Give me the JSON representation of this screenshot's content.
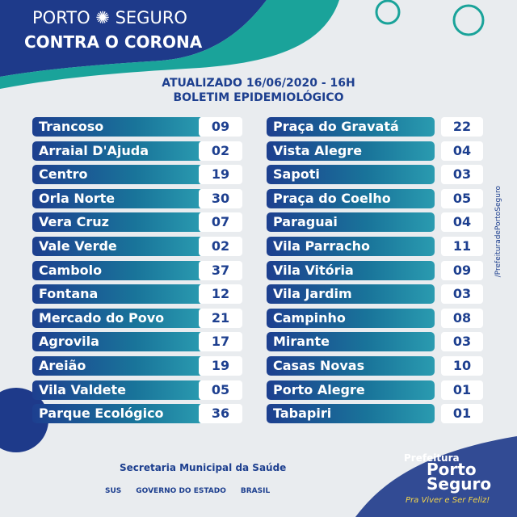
{
  "header": {
    "brand_left": "PORTO",
    "brand_right": "SEGURO",
    "title": "CONTRA O CORONA"
  },
  "bulletin": {
    "updated": "ATUALIZADO 16/06/2020 - 16H",
    "title": "BOLETIM EPIDEMIOLÓGICO"
  },
  "columns": [
    {
      "rows": [
        [
          "Trancoso",
          "09"
        ],
        [
          "Arraial D'Ajuda",
          "02"
        ],
        [
          "Centro",
          "19"
        ],
        [
          "Orla Norte",
          "30"
        ],
        [
          "Vera Cruz",
          "07"
        ],
        [
          "Vale Verde",
          "02"
        ],
        [
          "Cambolo",
          "37"
        ],
        [
          "Fontana",
          "12"
        ],
        [
          "Mercado do Povo",
          "21"
        ],
        [
          "Agrovila",
          "17"
        ],
        [
          "Areião",
          "19"
        ],
        [
          "Vila Valdete",
          "05"
        ],
        [
          "Parque Ecológico",
          "36"
        ]
      ]
    },
    {
      "rows": [
        [
          "Praça do Gravatá",
          "22"
        ],
        [
          "Vista Alegre",
          "04"
        ],
        [
          "Sapoti",
          "03"
        ],
        [
          "Praça do Coelho",
          "05"
        ],
        [
          "Paraguai",
          "04"
        ],
        [
          "Vila Parracho",
          "11"
        ],
        [
          "Vila Vitória",
          "09"
        ],
        [
          "Vila Jardim",
          "03"
        ],
        [
          "Campinho",
          "08"
        ],
        [
          "Mirante",
          "03"
        ],
        [
          "Casas Novas",
          "10"
        ],
        [
          "Porto Alegre",
          "01"
        ],
        [
          "Tabapiri",
          "01"
        ]
      ]
    }
  ],
  "side_text": "/PrefeituradePortoSeguro",
  "footer": {
    "secretaria": "Secretaria Municipal da Saúde",
    "logos": [
      "SUS",
      "GOVERNO DO ESTADO",
      "BRASIL"
    ],
    "prefeitura": "Prefeitura",
    "city_line1": "Porto",
    "city_line2": "Seguro",
    "slogan": "Pra Viver e Ser Feliz!"
  }
}
